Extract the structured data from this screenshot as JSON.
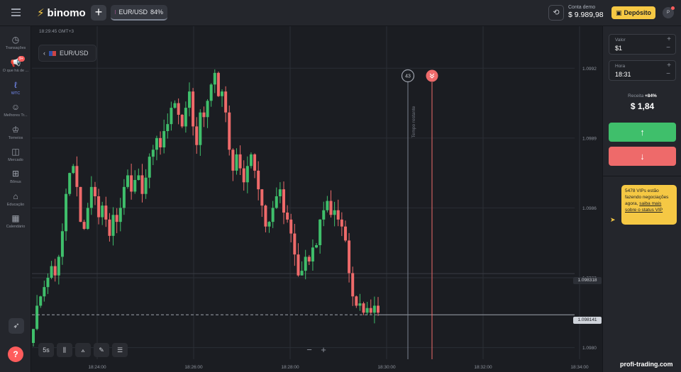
{
  "app": {
    "logo": "binomo",
    "add_tab": "+",
    "asset_tab": {
      "pair": "EUR/USD",
      "payout": "84%"
    },
    "account": {
      "label": "Conta demo",
      "balance": "$ 9.989,98"
    },
    "deposit_label": "Depósito",
    "avatar": "P"
  },
  "sidebar": {
    "items": [
      {
        "label": "Transações",
        "icon": "clock-icon"
      },
      {
        "label": "O que há de ...",
        "icon": "megaphone-icon",
        "badge": "9+"
      },
      {
        "label": "WTC",
        "icon": "wtc-icon"
      },
      {
        "label": "Melhores Tr...",
        "icon": "users-icon"
      },
      {
        "label": "Torneios",
        "icon": "trophy-icon"
      },
      {
        "label": "Mercado",
        "icon": "bag-icon"
      },
      {
        "label": "Bônus",
        "icon": "gift-icon"
      },
      {
        "label": "Educação",
        "icon": "graduation-icon"
      },
      {
        "label": "Calendário",
        "icon": "calendar-icon"
      }
    ]
  },
  "chart": {
    "server_time": "18:29:45 GMT+3",
    "pair": "EUR/USD",
    "timeframe": "5s",
    "countdown": "43",
    "vertical_label": "Tempo restante",
    "current_price": "1.098141",
    "prev_price": "1.098318",
    "colors": {
      "up": "#3fbf6b",
      "down": "#ee6a6a"
    }
  },
  "chart_data": {
    "type": "candlestick",
    "x_ticks": [
      "18:24:00",
      "18:26:00",
      "18:28:00",
      "18:30:00",
      "18:32:00",
      "18:34:00"
    ],
    "y_ticks": [
      "1.0992",
      "1.0989",
      "1.0986",
      "1.0983",
      "1.0980"
    ],
    "ylim": [
      1.09795,
      1.09935
    ],
    "closes": [
      1.09808,
      1.09818,
      1.09822,
      1.09826,
      1.0983,
      1.09835,
      1.09831,
      1.09839,
      1.0985,
      1.09866,
      1.09875,
      1.09878,
      1.09869,
      1.09854,
      1.09851,
      1.0986,
      1.09869,
      1.09865,
      1.09856,
      1.09861,
      1.09855,
      1.09848,
      1.09857,
      1.09854,
      1.0986,
      1.09869,
      1.09874,
      1.09867,
      1.09872,
      1.09874,
      1.09866,
      1.09873,
      1.09882,
      1.09885,
      1.0989,
      1.09886,
      1.09893,
      1.09896,
      1.09903,
      1.09905,
      1.099,
      1.09895,
      1.09903,
      1.0991,
      1.09895,
      1.09887,
      1.09901,
      1.09899,
      1.09906,
      1.09913,
      1.09918,
      1.09908,
      1.0991,
      1.09901,
      1.09885,
      1.09876,
      1.09883,
      1.09877,
      1.09871,
      1.09878,
      1.09883,
      1.09876,
      1.09868,
      1.09861,
      1.09852,
      1.09854,
      1.0986,
      1.09865,
      1.09868,
      1.09858,
      1.09855,
      1.09849,
      1.0984,
      1.09831,
      1.09833,
      1.09839,
      1.09837,
      1.09843,
      1.09844,
      1.09855,
      1.09859,
      1.09863,
      1.09857,
      1.09859,
      1.09855,
      1.09852,
      1.09846,
      1.09832,
      1.09822,
      1.09818,
      1.09819,
      1.09815,
      1.09817,
      1.09815,
      1.09818,
      1.09815
    ]
  },
  "panel": {
    "amount": {
      "label": "Valor",
      "value": "$1"
    },
    "time": {
      "label": "Hora",
      "value": "18:31"
    },
    "payout_label": "Receita",
    "payout_pct": "+84%",
    "profit": "$ 1,84",
    "up_arrow": "↑",
    "down_arrow": "↓",
    "vip_text": "5478 VIPs estão fazendo negociações agora,",
    "vip_link": "saiba mais sobre o status VIP"
  },
  "watermark": "profi-trading.com"
}
